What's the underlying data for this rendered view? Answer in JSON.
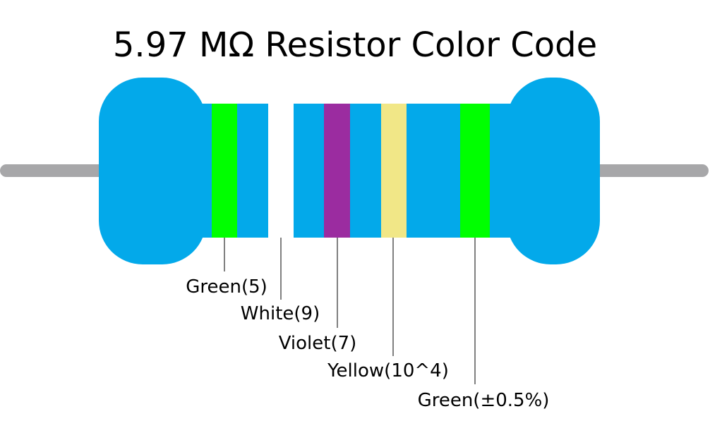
{
  "title": "5.97 MΩ Resistor Color Code",
  "bands": [
    {
      "label": "Green(5)",
      "color": "#00ff00"
    },
    {
      "label": "White(9)",
      "color": "#ffffff"
    },
    {
      "label": "Violet(7)",
      "color": "#9b2ca0"
    },
    {
      "label": "Yellow(10^4)",
      "color": "#f1e787"
    },
    {
      "label": "Green(±0.5%)",
      "color": "#00ff00"
    }
  ]
}
